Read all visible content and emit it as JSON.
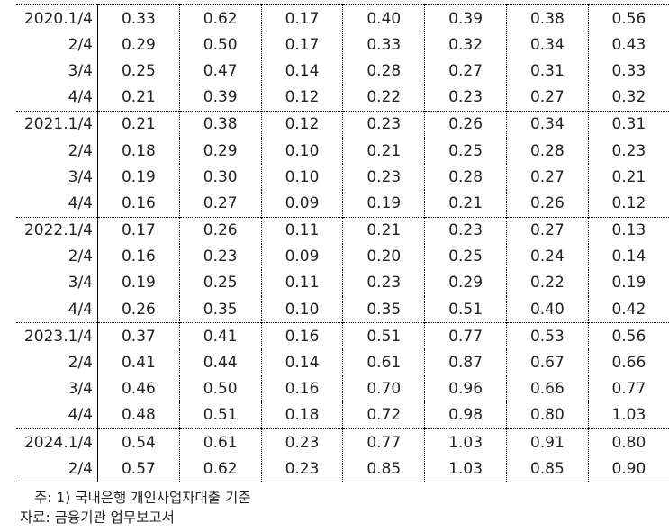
{
  "rows": [
    {
      "label": "2020.1/4",
      "values": [
        "0.33",
        "0.62",
        "0.17",
        "0.40",
        "0.39",
        "0.38",
        "0.56"
      ]
    },
    {
      "label": "2/4",
      "values": [
        "0.29",
        "0.50",
        "0.17",
        "0.33",
        "0.32",
        "0.34",
        "0.43"
      ]
    },
    {
      "label": "3/4",
      "values": [
        "0.25",
        "0.47",
        "0.14",
        "0.28",
        "0.27",
        "0.31",
        "0.33"
      ]
    },
    {
      "label": "4/4",
      "values": [
        "0.21",
        "0.39",
        "0.12",
        "0.22",
        "0.23",
        "0.27",
        "0.32"
      ]
    },
    {
      "label": "2021.1/4",
      "values": [
        "0.21",
        "0.38",
        "0.12",
        "0.23",
        "0.26",
        "0.34",
        "0.31"
      ]
    },
    {
      "label": "2/4",
      "values": [
        "0.18",
        "0.29",
        "0.10",
        "0.21",
        "0.25",
        "0.28",
        "0.23"
      ]
    },
    {
      "label": "3/4",
      "values": [
        "0.19",
        "0.30",
        "0.10",
        "0.23",
        "0.28",
        "0.27",
        "0.21"
      ]
    },
    {
      "label": "4/4",
      "values": [
        "0.16",
        "0.27",
        "0.09",
        "0.19",
        "0.21",
        "0.26",
        "0.12"
      ]
    },
    {
      "label": "2022.1/4",
      "values": [
        "0.17",
        "0.26",
        "0.11",
        "0.21",
        "0.23",
        "0.27",
        "0.13"
      ]
    },
    {
      "label": "2/4",
      "values": [
        "0.16",
        "0.23",
        "0.09",
        "0.20",
        "0.25",
        "0.24",
        "0.14"
      ]
    },
    {
      "label": "3/4",
      "values": [
        "0.19",
        "0.25",
        "0.11",
        "0.23",
        "0.29",
        "0.22",
        "0.19"
      ]
    },
    {
      "label": "4/4",
      "values": [
        "0.26",
        "0.35",
        "0.10",
        "0.35",
        "0.51",
        "0.40",
        "0.42"
      ]
    },
    {
      "label": "2023.1/4",
      "values": [
        "0.37",
        "0.41",
        "0.16",
        "0.51",
        "0.77",
        "0.53",
        "0.56"
      ]
    },
    {
      "label": "2/4",
      "values": [
        "0.41",
        "0.44",
        "0.14",
        "0.61",
        "0.87",
        "0.67",
        "0.66"
      ]
    },
    {
      "label": "3/4",
      "values": [
        "0.46",
        "0.50",
        "0.16",
        "0.70",
        "0.96",
        "0.66",
        "0.77"
      ]
    },
    {
      "label": "4/4",
      "values": [
        "0.48",
        "0.51",
        "0.18",
        "0.72",
        "0.98",
        "0.80",
        "1.03"
      ]
    },
    {
      "label": "2024.1/4",
      "values": [
        "0.54",
        "0.61",
        "0.23",
        "0.77",
        "1.03",
        "0.91",
        "0.80"
      ]
    },
    {
      "label": "2/4",
      "values": [
        "0.57",
        "0.62",
        "0.23",
        "0.85",
        "1.03",
        "0.85",
        "0.90"
      ]
    }
  ],
  "notes": {
    "note1": "주: 1) 국내은행 개인사업자대출 기준",
    "source": "자료: 금융기관 업무보고서"
  }
}
